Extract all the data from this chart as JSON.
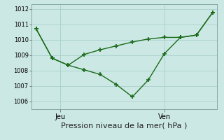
{
  "line1_x": [
    0,
    1,
    2,
    3,
    4,
    5,
    6,
    7,
    8,
    9,
    10,
    11
  ],
  "line1_y": [
    1010.7,
    1008.8,
    1008.35,
    1008.05,
    1007.75,
    1007.1,
    1006.3,
    1007.4,
    1009.1,
    1010.15,
    1010.3,
    1011.75
  ],
  "line2_x": [
    0,
    1,
    2,
    3,
    4,
    5,
    6,
    7,
    8,
    9,
    10,
    11
  ],
  "line2_y": [
    1010.7,
    1008.8,
    1008.35,
    1009.05,
    1009.35,
    1009.6,
    1009.85,
    1010.05,
    1010.15,
    1010.15,
    1010.3,
    1011.75
  ],
  "color": "#1a6b1a",
  "bg_color": "#cce8e4",
  "grid_color": "#aed4cf",
  "xlim": [
    -0.3,
    11.3
  ],
  "ylim": [
    1005.5,
    1012.3
  ],
  "yticks": [
    1006,
    1007,
    1008,
    1009,
    1010,
    1011,
    1012
  ],
  "ytick_labels": [
    "1006",
    "1007",
    "1008",
    "1009",
    "1010",
    "1011",
    "1012"
  ],
  "vline_positions": [
    1.5,
    8.0
  ],
  "xtick_positions": [
    1.5,
    8.0
  ],
  "xtick_labels": [
    "Jeu",
    "Ven"
  ],
  "xlabel": "Pression niveau de la mer( hPa )",
  "marker": "+",
  "markersize": 5,
  "markeredgewidth": 1.2,
  "linewidth": 1.0,
  "xlabel_fontsize": 8,
  "ytick_fontsize": 6,
  "xtick_fontsize": 7
}
